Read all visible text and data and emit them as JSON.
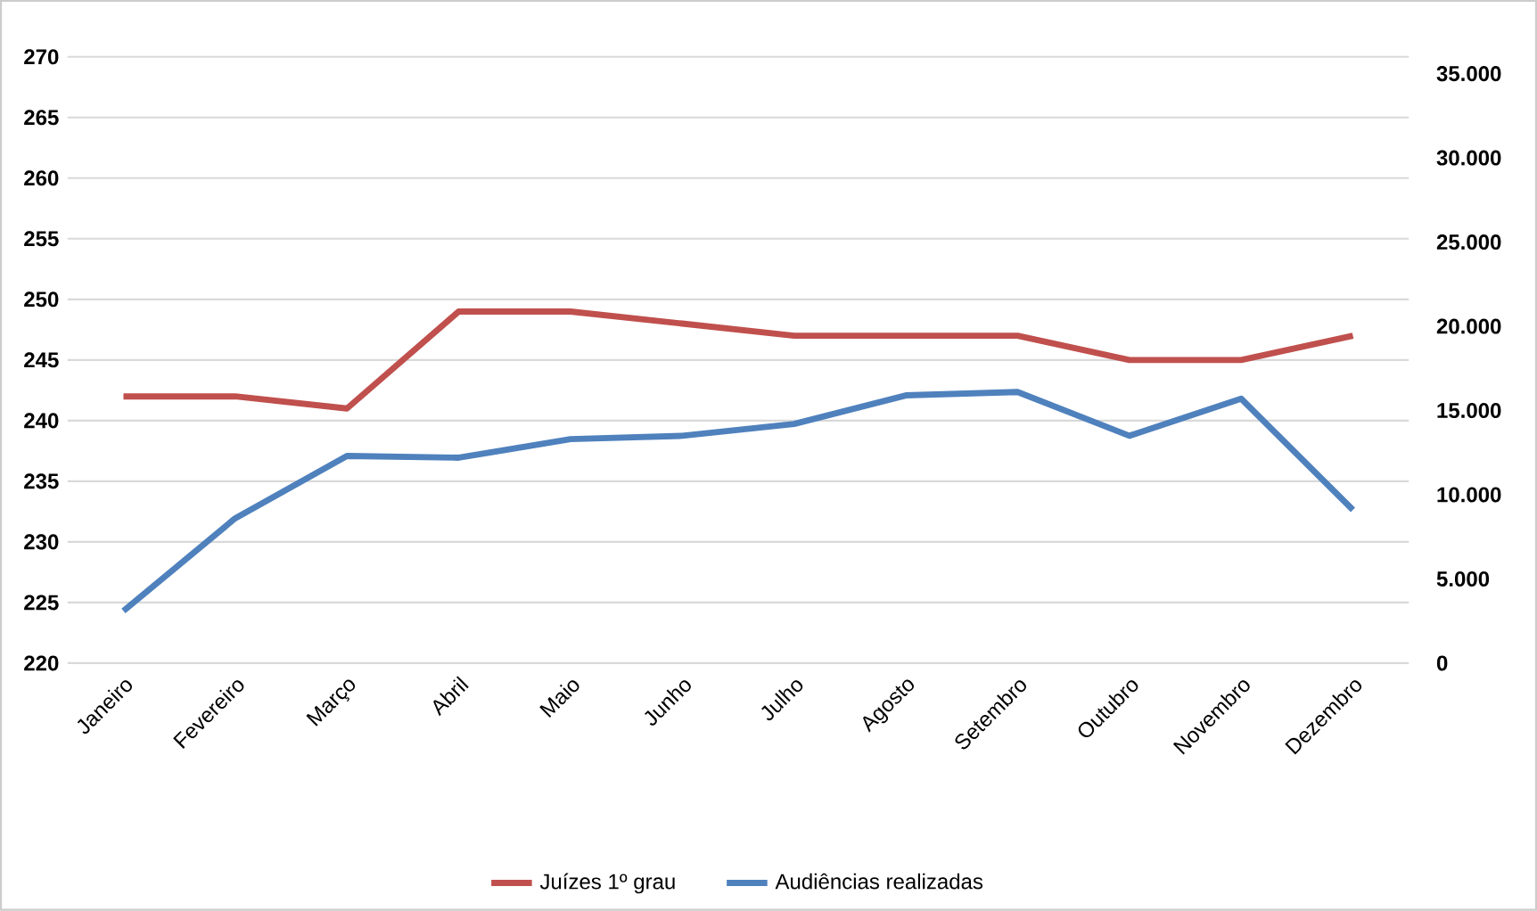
{
  "chart_data": {
    "type": "line",
    "categories": [
      "Janeiro",
      "Fevereiro",
      "Março",
      "Abril",
      "Maio",
      "Junho",
      "Julho",
      "Agosto",
      "Setembro",
      "Outubro",
      "Novembro",
      "Dezembro"
    ],
    "series": [
      {
        "name": "Juízes 1º grau",
        "color": "#c0504d",
        "values": [
          242,
          242,
          241,
          249,
          249,
          248,
          247,
          247,
          247,
          245,
          245,
          247
        ]
      },
      {
        "name": "Audiências realizadas",
        "color": "#4f81bd",
        "axis": "y2",
        "values": [
          3100,
          8600,
          12300,
          12200,
          13300,
          13500,
          14200,
          15900,
          16100,
          13500,
          15700,
          9100
        ]
      }
    ],
    "ylim": [
      220,
      270
    ],
    "yticks": [
      220,
      225,
      230,
      235,
      240,
      245,
      250,
      255,
      260,
      265,
      270
    ],
    "y2lim": [
      0,
      36000
    ],
    "y2ticks": [
      {
        "value": 0,
        "label": "0"
      },
      {
        "value": 5000,
        "label": "5.000"
      },
      {
        "value": 10000,
        "label": "10.000"
      },
      {
        "value": 15000,
        "label": "15.000"
      },
      {
        "value": 20000,
        "label": "20.000"
      },
      {
        "value": 25000,
        "label": "25.000"
      },
      {
        "value": 30000,
        "label": "30.000"
      },
      {
        "value": 35000,
        "label": "35.000"
      }
    ],
    "grid": "y",
    "legend": "bottom",
    "marker": "none",
    "line_style": "solid"
  }
}
